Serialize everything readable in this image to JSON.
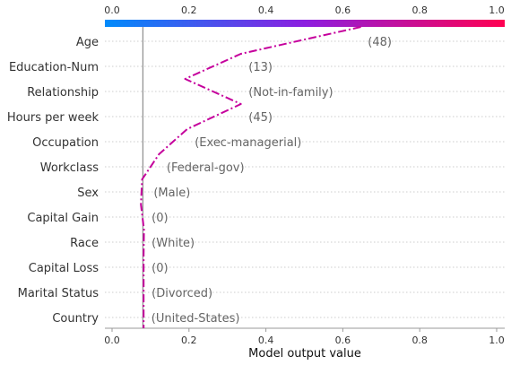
{
  "chart_data": {
    "type": "line",
    "title": "",
    "xlabel": "Model output value",
    "ylabel": "",
    "xlim": [
      0,
      1
    ],
    "ticks": [
      "0.0",
      "0.2",
      "0.4",
      "0.6",
      "0.8",
      "1.0"
    ],
    "tick_values": [
      0,
      0.2,
      0.4,
      0.6,
      0.8,
      1.0
    ],
    "base_value": 0.08,
    "colorbar": {
      "low_color": "#008bfb",
      "mid_color": "#8c1ee0",
      "high_color": "#ff0051"
    },
    "line_color": "#c5009c",
    "features": [
      {
        "name": "Age",
        "value": "(48)"
      },
      {
        "name": "Education-Num",
        "value": "(13)"
      },
      {
        "name": "Relationship",
        "value": "(Not-in-family)"
      },
      {
        "name": "Hours per week",
        "value": "(45)"
      },
      {
        "name": "Occupation",
        "value": "(Exec-managerial)"
      },
      {
        "name": "Workclass",
        "value": "(Federal-gov)"
      },
      {
        "name": "Sex",
        "value": "(Male)"
      },
      {
        "name": "Capital Gain",
        "value": "(0)"
      },
      {
        "name": "Race",
        "value": "(White)"
      },
      {
        "name": "Capital Loss",
        "value": "(0)"
      },
      {
        "name": "Marital Status",
        "value": "(Divorced)"
      },
      {
        "name": "Country",
        "value": "(United-States)"
      }
    ],
    "path_x": [
      0.647,
      0.335,
      0.19,
      0.335,
      0.195,
      0.122,
      0.078,
      0.075,
      0.083,
      0.082,
      0.082,
      0.082,
      0.082
    ],
    "label_anchor_x": [
      0.665,
      0.355,
      0.355,
      0.355,
      0.215,
      0.142,
      0.108,
      0.103,
      0.103,
      0.103,
      0.103,
      0.102
    ]
  }
}
